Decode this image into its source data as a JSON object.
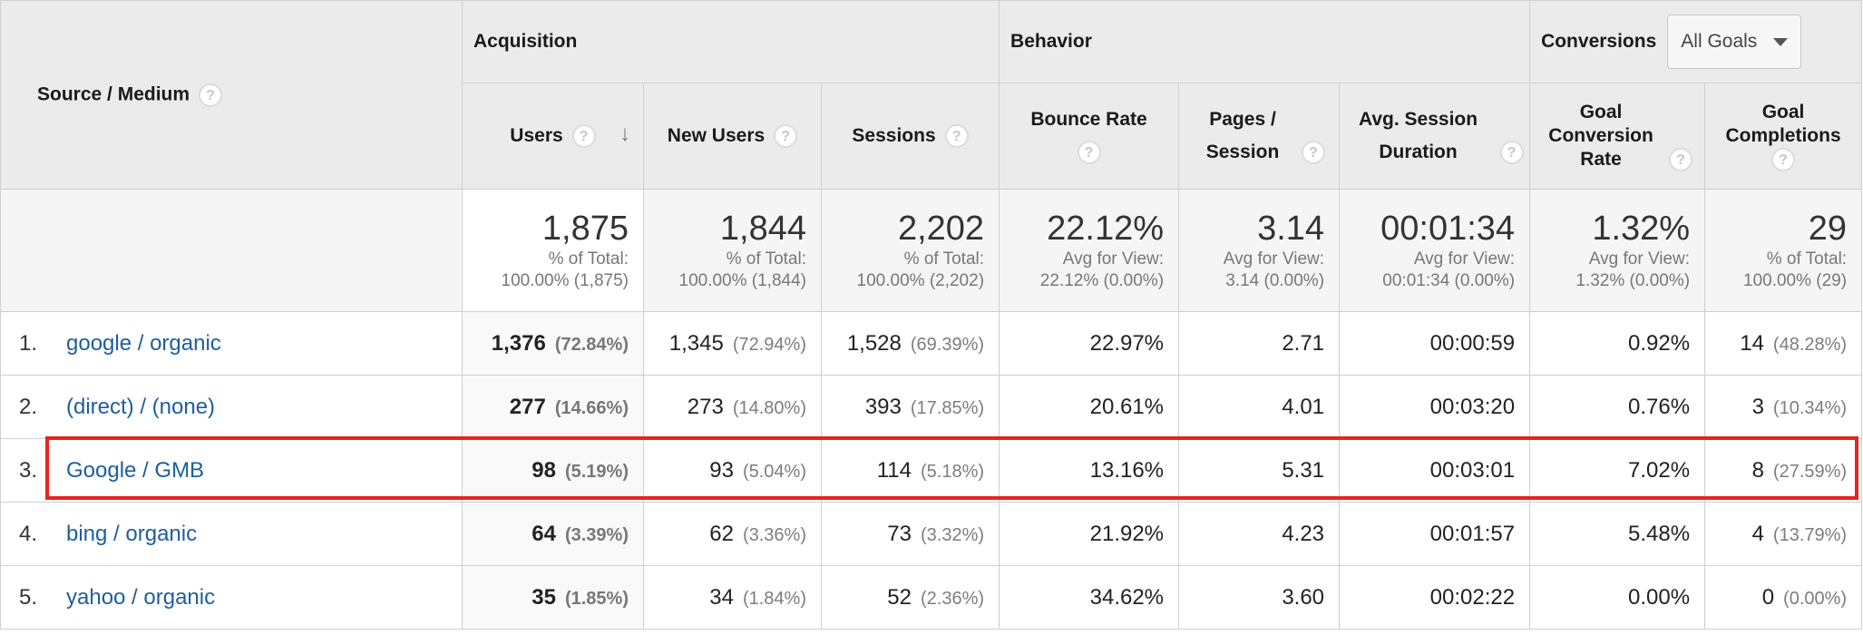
{
  "header": {
    "source_medium": "Source / Medium",
    "acquisition": "Acquisition",
    "behavior": "Behavior",
    "conversions": "Conversions",
    "goals_select": "All Goals",
    "columns": {
      "users": "Users",
      "new_users": "New Users",
      "sessions": "Sessions",
      "bounce_rate": "Bounce Rate",
      "pages_session": "Pages / Session",
      "avg_session_duration": "Avg. Session Duration",
      "goal_conversion_rate": "Goal Conversion Rate",
      "goal_completions": "Goal Completions"
    }
  },
  "totals": {
    "users": {
      "value": "1,875",
      "line1": "% of Total:",
      "line2": "100.00% (1,875)"
    },
    "new_users": {
      "value": "1,844",
      "line1": "% of Total:",
      "line2": "100.00% (1,844)"
    },
    "sessions": {
      "value": "2,202",
      "line1": "% of Total:",
      "line2": "100.00% (2,202)"
    },
    "bounce_rate": {
      "value": "22.12%",
      "line1": "Avg for View:",
      "line2": "22.12% (0.00%)"
    },
    "pages_session": {
      "value": "3.14",
      "line1": "Avg for View:",
      "line2": "3.14 (0.00%)"
    },
    "avg_session_duration": {
      "value": "00:01:34",
      "line1": "Avg for View:",
      "line2": "00:01:34 (0.00%)"
    },
    "goal_conversion_rate": {
      "value": "1.32%",
      "line1": "Avg for View:",
      "line2": "1.32% (0.00%)"
    },
    "goal_completions": {
      "value": "29",
      "line1": "% of Total:",
      "line2": "100.00% (29)"
    }
  },
  "rows": [
    {
      "num": "1.",
      "source": "google / organic",
      "users": "1,376",
      "users_pct": "(72.84%)",
      "new_users": "1,345",
      "new_users_pct": "(72.94%)",
      "sessions": "1,528",
      "sessions_pct": "(69.39%)",
      "bounce_rate": "22.97%",
      "pages_session": "2.71",
      "duration": "00:00:59",
      "gcr": "0.92%",
      "gc": "14",
      "gc_pct": "(48.28%)"
    },
    {
      "num": "2.",
      "source": "(direct) / (none)",
      "users": "277",
      "users_pct": "(14.66%)",
      "new_users": "273",
      "new_users_pct": "(14.80%)",
      "sessions": "393",
      "sessions_pct": "(17.85%)",
      "bounce_rate": "20.61%",
      "pages_session": "4.01",
      "duration": "00:03:20",
      "gcr": "0.76%",
      "gc": "3",
      "gc_pct": "(10.34%)"
    },
    {
      "num": "3.",
      "source": "Google / GMB",
      "users": "98",
      "users_pct": "(5.19%)",
      "new_users": "93",
      "new_users_pct": "(5.04%)",
      "sessions": "114",
      "sessions_pct": "(5.18%)",
      "bounce_rate": "13.16%",
      "pages_session": "5.31",
      "duration": "00:03:01",
      "gcr": "7.02%",
      "gc": "8",
      "gc_pct": "(27.59%)"
    },
    {
      "num": "4.",
      "source": "bing / organic",
      "users": "64",
      "users_pct": "(3.39%)",
      "new_users": "62",
      "new_users_pct": "(3.36%)",
      "sessions": "73",
      "sessions_pct": "(3.32%)",
      "bounce_rate": "21.92%",
      "pages_session": "4.23",
      "duration": "00:01:57",
      "gcr": "5.48%",
      "gc": "4",
      "gc_pct": "(13.79%)"
    },
    {
      "num": "5.",
      "source": "yahoo / organic",
      "users": "35",
      "users_pct": "(1.85%)",
      "new_users": "34",
      "new_users_pct": "(1.84%)",
      "sessions": "52",
      "sessions_pct": "(2.36%)",
      "bounce_rate": "34.62%",
      "pages_session": "3.60",
      "duration": "00:02:22",
      "gcr": "0.00%",
      "gc": "0",
      "gc_pct": "(0.00%)"
    }
  ],
  "highlight_color": "#e5251e",
  "link_color": "#1e5e9e",
  "icons": {
    "help": "question-mark-circle",
    "sort": "arrow-down",
    "select": "caret-down"
  }
}
